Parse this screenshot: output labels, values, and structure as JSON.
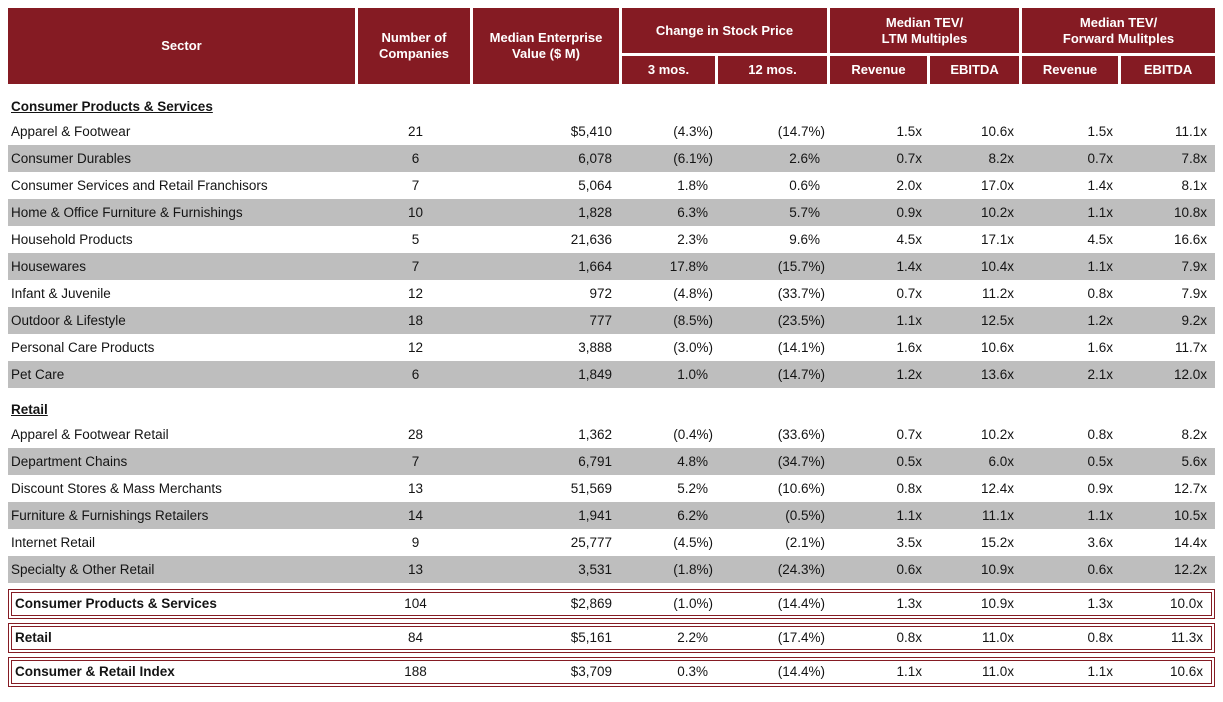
{
  "table": {
    "colors": {
      "header_bg": "#851b23",
      "stripe": "#bebebe",
      "summary_border": "#851b23",
      "header_text": "#ffffff"
    },
    "header": {
      "sector": "Sector",
      "companies": [
        "Number of",
        "Companies"
      ],
      "ev": [
        "Median Enterprise",
        "Value ($ M)"
      ],
      "stock": "Change in Stock Price",
      "ltm": [
        "Median TEV/",
        "LTM Multiples"
      ],
      "fwd": [
        "Median TEV/",
        "Forward Mulitples"
      ],
      "subs": [
        "3 mos.",
        "12 mos.",
        "Revenue",
        "EBITDA",
        "Revenue",
        "EBITDA"
      ]
    },
    "sections": [
      {
        "title": "Consumer Products & Services",
        "rows": [
          {
            "sector": "Apparel & Footwear",
            "cells": [
              "21",
              "$5,410",
              "(4.3%)",
              "(14.7%)",
              "1.5x",
              "10.6x",
              "1.5x",
              "11.1x"
            ]
          },
          {
            "sector": "Consumer Durables",
            "cells": [
              "6",
              "6,078",
              "(6.1%)",
              "2.6%",
              "0.7x",
              "8.2x",
              "0.7x",
              "7.8x"
            ]
          },
          {
            "sector": "Consumer Services and Retail Franchisors",
            "cells": [
              "7",
              "5,064",
              "1.8%",
              "0.6%",
              "2.0x",
              "17.0x",
              "1.4x",
              "8.1x"
            ]
          },
          {
            "sector": "Home & Office Furniture & Furnishings",
            "cells": [
              "10",
              "1,828",
              "6.3%",
              "5.7%",
              "0.9x",
              "10.2x",
              "1.1x",
              "10.8x"
            ]
          },
          {
            "sector": "Household Products",
            "cells": [
              "5",
              "21,636",
              "2.3%",
              "9.6%",
              "4.5x",
              "17.1x",
              "4.5x",
              "16.6x"
            ]
          },
          {
            "sector": "Housewares",
            "cells": [
              "7",
              "1,664",
              "17.8%",
              "(15.7%)",
              "1.4x",
              "10.4x",
              "1.1x",
              "7.9x"
            ]
          },
          {
            "sector": "Infant & Juvenile",
            "cells": [
              "12",
              "972",
              "(4.8%)",
              "(33.7%)",
              "0.7x",
              "11.2x",
              "0.8x",
              "7.9x"
            ]
          },
          {
            "sector": "Outdoor & Lifestyle",
            "cells": [
              "18",
              "777",
              "(8.5%)",
              "(23.5%)",
              "1.1x",
              "12.5x",
              "1.2x",
              "9.2x"
            ]
          },
          {
            "sector": "Personal Care Products",
            "cells": [
              "12",
              "3,888",
              "(3.0%)",
              "(14.1%)",
              "1.6x",
              "10.6x",
              "1.6x",
              "11.7x"
            ]
          },
          {
            "sector": "Pet Care",
            "cells": [
              "6",
              "1,849",
              "1.0%",
              "(14.7%)",
              "1.2x",
              "13.6x",
              "2.1x",
              "12.0x"
            ]
          }
        ]
      },
      {
        "title": "Retail",
        "rows": [
          {
            "sector": "Apparel & Footwear Retail",
            "cells": [
              "28",
              "1,362",
              "(0.4%)",
              "(33.6%)",
              "0.7x",
              "10.2x",
              "0.8x",
              "8.2x"
            ]
          },
          {
            "sector": "Department Chains",
            "cells": [
              "7",
              "6,791",
              "4.8%",
              "(34.7%)",
              "0.5x",
              "6.0x",
              "0.5x",
              "5.6x"
            ]
          },
          {
            "sector": "Discount Stores & Mass Merchants",
            "cells": [
              "13",
              "51,569",
              "5.2%",
              "(10.6%)",
              "0.8x",
              "12.4x",
              "0.9x",
              "12.7x"
            ]
          },
          {
            "sector": "Furniture & Furnishings Retailers",
            "cells": [
              "14",
              "1,941",
              "6.2%",
              "(0.5%)",
              "1.1x",
              "11.1x",
              "1.1x",
              "10.5x"
            ]
          },
          {
            "sector": "Internet Retail",
            "cells": [
              "9",
              "25,777",
              "(4.5%)",
              "(2.1%)",
              "3.5x",
              "15.2x",
              "3.6x",
              "14.4x"
            ]
          },
          {
            "sector": "Specialty & Other Retail",
            "cells": [
              "13",
              "3,531",
              "(1.8%)",
              "(24.3%)",
              "0.6x",
              "10.9x",
              "0.6x",
              "12.2x"
            ]
          }
        ]
      }
    ],
    "summary_rows": [
      {
        "sector": "Consumer Products & Services",
        "cells": [
          "104",
          "$2,869",
          "(1.0%)",
          "(14.4%)",
          "1.3x",
          "10.9x",
          "1.3x",
          "10.0x"
        ]
      },
      {
        "sector": "Retail",
        "cells": [
          "84",
          "$5,161",
          "2.2%",
          "(17.4%)",
          "0.8x",
          "11.0x",
          "0.8x",
          "11.3x"
        ]
      },
      {
        "sector": "Consumer & Retail Index",
        "cells": [
          "188",
          "$3,709",
          "0.3%",
          "(14.4%)",
          "1.1x",
          "11.0x",
          "1.1x",
          "10.6x"
        ]
      }
    ]
  }
}
